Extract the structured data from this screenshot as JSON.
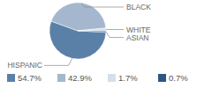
{
  "chart_data": {
    "type": "pie",
    "categories": [
      "HISPANIC",
      "BLACK",
      "WHITE",
      "ASIAN"
    ],
    "values": [
      54.7,
      42.9,
      1.7,
      0.7
    ],
    "value_labels": [
      "54.7%",
      "42.9%",
      "1.7%",
      "0.7%"
    ],
    "colors": [
      "#5b80a8",
      "#a4b7cf",
      "#d4dfeb",
      "#2c5784"
    ],
    "legend": "bottom"
  }
}
